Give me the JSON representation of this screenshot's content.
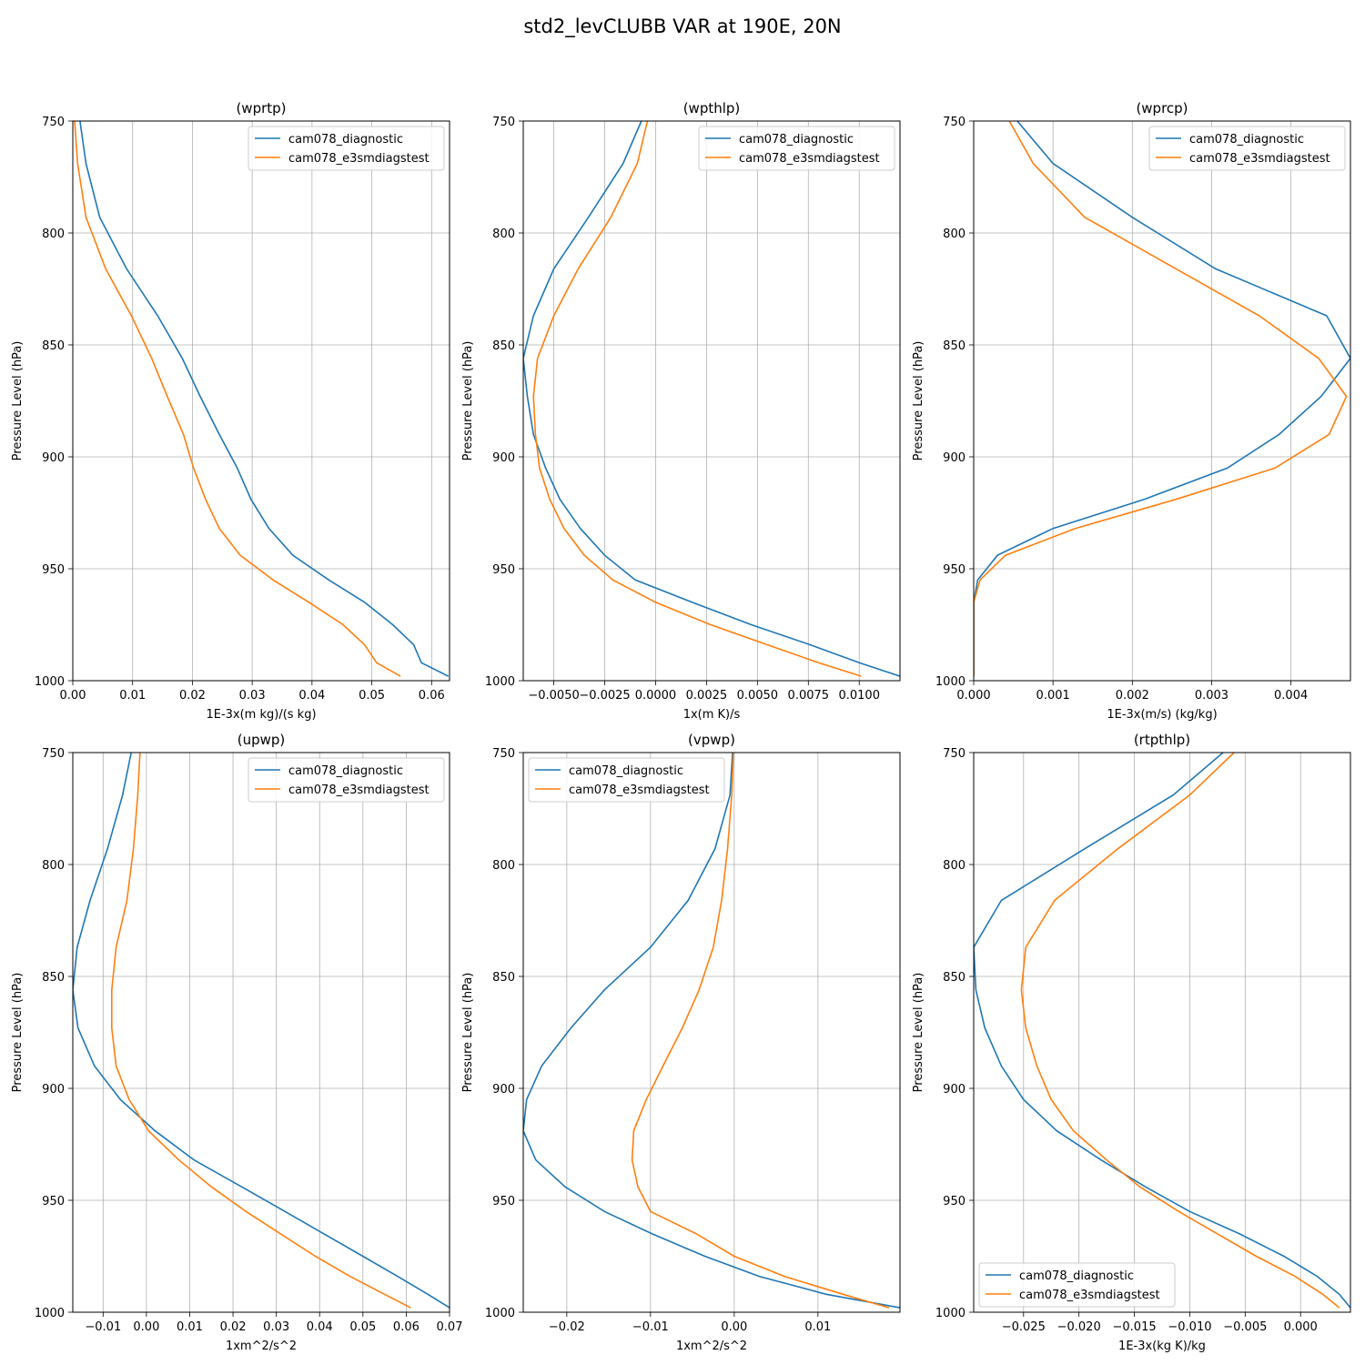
{
  "figure_title": "std2_levCLUBB VAR at 190E, 20N",
  "colors": {
    "diagnostic": "#1f77b4",
    "e3smdiagstest": "#ff7f0e",
    "grid": "#b0b0b0"
  },
  "legend_labels": [
    "cam078_diagnostic",
    "cam078_e3smdiagstest"
  ],
  "chart_data": [
    {
      "type": "line",
      "title": "(wprtp)",
      "xlabel": "1E-3x(m kg)/(s kg)",
      "ylabel": "Pressure Level (hPa)",
      "xlim": [
        0.0,
        0.063
      ],
      "ylim": [
        1000,
        750
      ],
      "xticks": [
        0.0,
        0.01,
        0.02,
        0.03,
        0.04,
        0.05,
        0.06
      ],
      "xtick_labels": [
        "0.00",
        "0.01",
        "0.02",
        "0.03",
        "0.04",
        "0.05",
        "0.06"
      ],
      "yticks": [
        750,
        800,
        850,
        900,
        950,
        1000
      ],
      "legend": "upper right",
      "grid": true,
      "pressure": [
        750,
        769,
        793,
        816,
        837,
        856,
        873,
        890,
        905,
        919,
        932,
        944,
        955,
        965,
        975,
        984,
        992,
        998
      ],
      "series": [
        {
          "name": "cam078_diagnostic",
          "values": [
            0.0012,
            0.0022,
            0.0045,
            0.009,
            0.0142,
            0.0183,
            0.0213,
            0.0245,
            0.0275,
            0.0298,
            0.0328,
            0.0368,
            0.0428,
            0.0488,
            0.0535,
            0.057,
            0.0583,
            0.0628
          ]
        },
        {
          "name": "cam078_e3smdiagstest",
          "values": [
            0.0003,
            0.0008,
            0.0022,
            0.0055,
            0.0098,
            0.0132,
            0.0158,
            0.0185,
            0.0202,
            0.0222,
            0.0245,
            0.028,
            0.0335,
            0.0395,
            0.0452,
            0.0488,
            0.0508,
            0.0548
          ]
        }
      ]
    },
    {
      "type": "line",
      "title": "(wpthlp)",
      "xlabel": "1x(m K)/s",
      "ylabel": "Pressure Level (hPa)",
      "xlim": [
        -0.0065,
        0.012
      ],
      "ylim": [
        1000,
        750
      ],
      "xticks": [
        -0.005,
        -0.0025,
        0.0,
        0.0025,
        0.005,
        0.0075,
        0.01
      ],
      "xtick_labels": [
        "−0.0050",
        "−0.0025",
        "0.0000",
        "0.0025",
        "0.0050",
        "0.0075",
        "0.0100"
      ],
      "yticks": [
        750,
        800,
        850,
        900,
        950,
        1000
      ],
      "legend": "upper right",
      "grid": true,
      "pressure": [
        750,
        769,
        793,
        816,
        837,
        856,
        873,
        890,
        905,
        919,
        932,
        944,
        955,
        965,
        975,
        984,
        992,
        998
      ],
      "series": [
        {
          "name": "cam078_diagnostic",
          "values": [
            -0.0007,
            -0.0016,
            -0.0033,
            -0.005,
            -0.006,
            -0.0065,
            -0.0063,
            -0.006,
            -0.0054,
            -0.0047,
            -0.0037,
            -0.0025,
            -0.001,
            0.0018,
            0.0047,
            0.0076,
            0.01,
            0.012
          ]
        },
        {
          "name": "cam078_e3smdiagstest",
          "values": [
            -0.0004,
            -0.0009,
            -0.0022,
            -0.0038,
            -0.005,
            -0.0058,
            -0.006,
            -0.0059,
            -0.0057,
            -0.0052,
            -0.0045,
            -0.0035,
            -0.0021,
            0.0,
            0.0027,
            0.0055,
            0.008,
            0.0101
          ]
        }
      ]
    },
    {
      "type": "line",
      "title": "(wprcp)",
      "xlabel": "1E-3x(m/s) (kg/kg)",
      "ylabel": "Pressure Level (hPa)",
      "xlim": [
        0.0,
        0.00475
      ],
      "ylim": [
        1000,
        750
      ],
      "xticks": [
        0.0,
        0.001,
        0.002,
        0.003,
        0.004
      ],
      "xtick_labels": [
        "0.000",
        "0.001",
        "0.002",
        "0.003",
        "0.004"
      ],
      "yticks": [
        750,
        800,
        850,
        900,
        950,
        1000
      ],
      "legend": "upper right",
      "grid": true,
      "pressure": [
        750,
        769,
        793,
        816,
        837,
        856,
        873,
        890,
        905,
        919,
        932,
        944,
        955,
        965,
        975,
        984,
        992,
        998
      ],
      "series": [
        {
          "name": "cam078_diagnostic",
          "values": [
            0.00055,
            0.001,
            0.002,
            0.00305,
            0.00445,
            0.00475,
            0.00438,
            0.00385,
            0.0032,
            0.00215,
            0.001,
            0.0003,
            5e-05,
            0.0,
            0.0,
            0.0,
            0.0,
            0.0
          ]
        },
        {
          "name": "cam078_e3smdiagstest",
          "values": [
            0.00045,
            0.00075,
            0.0014,
            0.00255,
            0.0036,
            0.00435,
            0.0047,
            0.00448,
            0.0038,
            0.00255,
            0.00128,
            0.0004,
            8e-05,
            0.0,
            0.0,
            0.0,
            0.0,
            0.0
          ]
        }
      ]
    },
    {
      "type": "line",
      "title": "(upwp)",
      "xlabel": "1xm^2/s^2",
      "ylabel": "Pressure Level (hPa)",
      "xlim": [
        -0.017,
        0.07
      ],
      "ylim": [
        1000,
        750
      ],
      "xticks": [
        -0.01,
        0.0,
        0.01,
        0.02,
        0.03,
        0.04,
        0.05,
        0.06,
        0.07
      ],
      "xtick_labels": [
        "−0.01",
        "0.00",
        "0.01",
        "0.02",
        "0.03",
        "0.04",
        "0.05",
        "0.06",
        "0.07"
      ],
      "yticks": [
        750,
        800,
        850,
        900,
        950,
        1000
      ],
      "legend": "upper right",
      "grid": true,
      "pressure": [
        750,
        769,
        793,
        816,
        837,
        856,
        873,
        890,
        905,
        919,
        932,
        944,
        955,
        965,
        975,
        984,
        992,
        998
      ],
      "series": [
        {
          "name": "cam078_diagnostic",
          "values": [
            -0.0035,
            -0.0055,
            -0.009,
            -0.013,
            -0.016,
            -0.017,
            -0.0158,
            -0.012,
            -0.006,
            0.002,
            0.011,
            0.022,
            0.032,
            0.041,
            0.05,
            0.058,
            0.065,
            0.07
          ]
        },
        {
          "name": "cam078_e3smdiagstest",
          "values": [
            -0.0015,
            -0.002,
            -0.003,
            -0.0045,
            -0.007,
            -0.008,
            -0.008,
            -0.007,
            -0.004,
            0.0005,
            0.0075,
            0.015,
            0.023,
            0.031,
            0.039,
            0.047,
            0.055,
            0.061
          ]
        }
      ]
    },
    {
      "type": "line",
      "title": "(vpwp)",
      "xlabel": "1xm^2/s^2",
      "ylabel": "Pressure Level (hPa)",
      "xlim": [
        -0.0252,
        0.0198
      ],
      "ylim": [
        1000,
        750
      ],
      "xticks": [
        -0.02,
        -0.01,
        0.0,
        0.01
      ],
      "xtick_labels": [
        "−0.02",
        "−0.01",
        "0.00",
        "0.01"
      ],
      "yticks": [
        750,
        800,
        850,
        900,
        950,
        1000
      ],
      "legend": "upper left",
      "grid": true,
      "pressure": [
        750,
        769,
        793,
        816,
        837,
        856,
        873,
        890,
        905,
        919,
        932,
        944,
        955,
        965,
        975,
        984,
        992,
        998
      ],
      "series": [
        {
          "name": "cam078_diagnostic",
          "values": [
            -0.0002,
            -0.0005,
            -0.0023,
            -0.0055,
            -0.01,
            -0.0155,
            -0.0195,
            -0.023,
            -0.0248,
            -0.0252,
            -0.0237,
            -0.0202,
            -0.0155,
            -0.0098,
            -0.0035,
            0.003,
            0.011,
            0.0198
          ]
        },
        {
          "name": "cam078_e3smdiagstest",
          "values": [
            -0.0001,
            -0.0003,
            -0.0008,
            -0.0015,
            -0.0025,
            -0.0042,
            -0.0062,
            -0.0085,
            -0.0105,
            -0.012,
            -0.0122,
            -0.0115,
            -0.01,
            -0.0045,
            0.0,
            0.006,
            0.013,
            0.0185
          ]
        }
      ]
    },
    {
      "type": "line",
      "title": "(rtpthlp)",
      "xlabel": "1E-3x(kg K)/kg",
      "ylabel": "Pressure Level (hPa)",
      "xlim": [
        -0.0295,
        0.0045
      ],
      "ylim": [
        1000,
        750
      ],
      "xticks": [
        -0.025,
        -0.02,
        -0.015,
        -0.01,
        -0.005,
        0.0
      ],
      "xtick_labels": [
        "−0.025",
        "−0.020",
        "−0.015",
        "−0.010",
        "−0.005",
        "0.000"
      ],
      "yticks": [
        750,
        800,
        850,
        900,
        950,
        1000
      ],
      "legend": "lower left",
      "grid": true,
      "pressure": [
        750,
        769,
        793,
        816,
        837,
        856,
        873,
        890,
        905,
        919,
        932,
        944,
        955,
        965,
        975,
        984,
        992,
        998
      ],
      "series": [
        {
          "name": "cam078_diagnostic",
          "values": [
            -0.007,
            -0.0115,
            -0.0195,
            -0.027,
            -0.0295,
            -0.0293,
            -0.0285,
            -0.027,
            -0.025,
            -0.022,
            -0.018,
            -0.014,
            -0.01,
            -0.0055,
            -0.0015,
            0.0015,
            0.0035,
            0.0045
          ]
        },
        {
          "name": "cam078_e3smdiagstest",
          "values": [
            -0.006,
            -0.01,
            -0.0165,
            -0.0222,
            -0.0248,
            -0.0252,
            -0.0248,
            -0.0238,
            -0.0225,
            -0.0205,
            -0.0175,
            -0.0145,
            -0.011,
            -0.0075,
            -0.004,
            -0.0005,
            0.002,
            0.0035
          ]
        }
      ]
    }
  ]
}
